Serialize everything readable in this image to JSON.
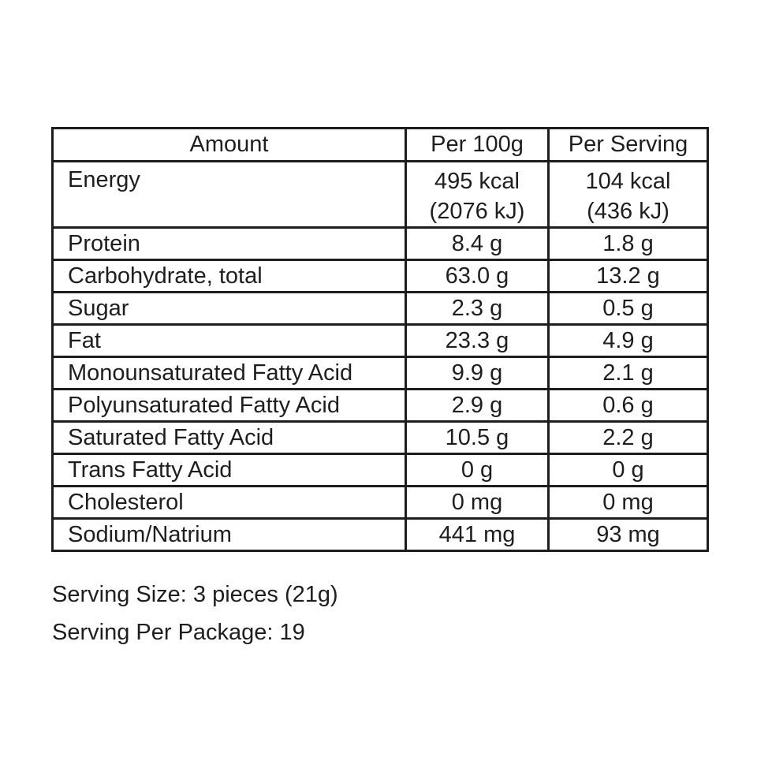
{
  "colors": {
    "background": "#ffffff",
    "text": "#1e1e1e",
    "table_border": "#1d1d1d"
  },
  "table": {
    "headers": [
      "Amount",
      "Per 100g",
      "Per Serving"
    ],
    "energy_row": {
      "label": "Energy",
      "per_100g_kcal": "495 kcal",
      "per_100g_kj": "(2076 kJ)",
      "per_serving_kcal": "104 kcal",
      "per_serving_kj": "(436 kJ)"
    },
    "rows": [
      {
        "label": "Protein",
        "per_100g": "8.4 g",
        "per_serving": "1.8 g"
      },
      {
        "label": "Carbohydrate, total",
        "per_100g": "63.0 g",
        "per_serving": "13.2 g"
      },
      {
        "label": "Sugar",
        "per_100g": "2.3 g",
        "per_serving": "0.5 g"
      },
      {
        "label": "Fat",
        "per_100g": "23.3 g",
        "per_serving": "4.9 g"
      },
      {
        "label": "Monounsaturated Fatty Acid",
        "per_100g": "9.9 g",
        "per_serving": "2.1 g"
      },
      {
        "label": "Polyunsaturated Fatty Acid",
        "per_100g": "2.9 g",
        "per_serving": "0.6 g"
      },
      {
        "label": "Saturated Fatty Acid",
        "per_100g": "10.5 g",
        "per_serving": "2.2 g"
      },
      {
        "label": "Trans Fatty Acid",
        "per_100g": "0 g",
        "per_serving": "0 g"
      },
      {
        "label": "Cholesterol",
        "per_100g": "0 mg",
        "per_serving": "0 mg"
      },
      {
        "label": "Sodium/Natrium",
        "per_100g": "441 mg",
        "per_serving": "93 mg"
      }
    ]
  },
  "footer": {
    "serving_size": "Serving Size: 3 pieces (21g)",
    "serving_per_package": "Serving Per Package: 19"
  }
}
